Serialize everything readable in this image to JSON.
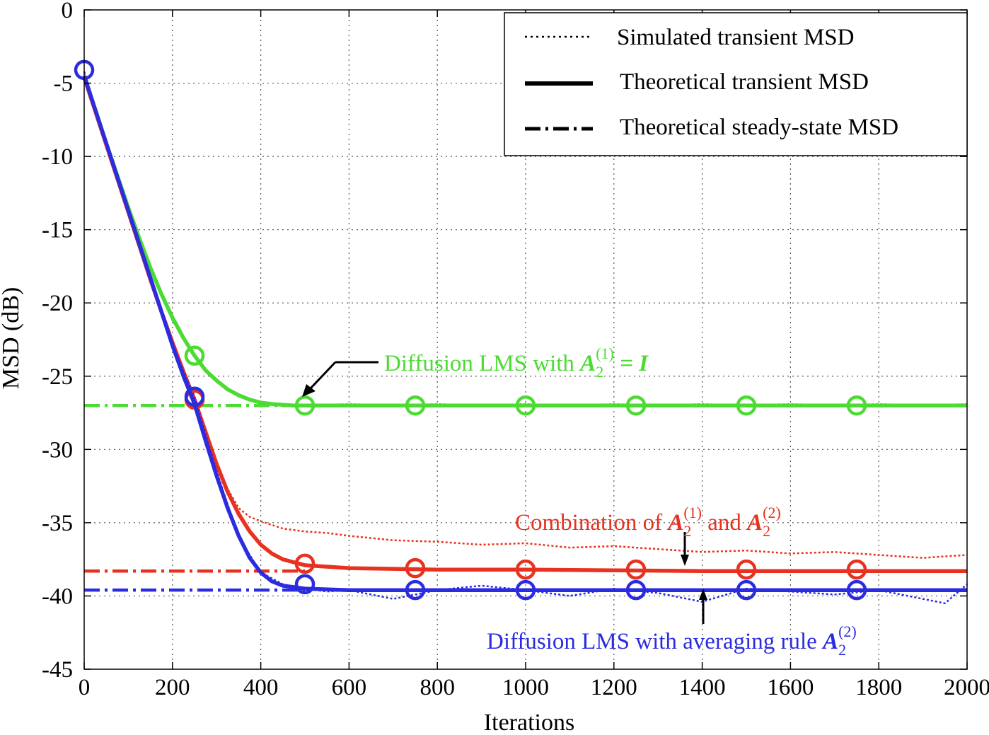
{
  "chart_data": {
    "type": "line",
    "xlabel": "Iterations",
    "ylabel": "MSD (dB)",
    "xlim": [
      0,
      2000
    ],
    "ylim": [
      -45,
      0
    ],
    "xticks": [
      0,
      200,
      400,
      600,
      800,
      1000,
      1200,
      1400,
      1600,
      1800,
      2000
    ],
    "yticks": [
      0,
      -5,
      -10,
      -15,
      -20,
      -25,
      -30,
      -35,
      -40,
      -45
    ],
    "grid": true,
    "legend_position": "top-right",
    "legend": [
      {
        "label": "Simulated transient MSD",
        "style": "dotted"
      },
      {
        "label": "Theoretical transient MSD",
        "style": "solid"
      },
      {
        "label": "Theoretical steady-state MSD",
        "style": "dash-dot"
      }
    ],
    "series": [
      {
        "color": "#4cdb33",
        "annotation": {
          "prefix": "Diffusion LMS with ",
          "math": "A",
          "sub": "2",
          "sup": "(1)",
          "suffix": " = I"
        },
        "steady_state": -27.0,
        "theoretical": {
          "x": [
            0,
            25,
            50,
            75,
            100,
            125,
            150,
            175,
            200,
            225,
            250,
            275,
            300,
            325,
            350,
            375,
            400,
            425,
            450,
            475,
            500,
            550,
            600,
            700,
            800,
            900,
            1000,
            1200,
            1400,
            1600,
            1800,
            2000
          ],
          "y": [
            -4.6,
            -6.8,
            -9.1,
            -11.3,
            -13.5,
            -15.6,
            -17.6,
            -19.4,
            -21.0,
            -22.4,
            -23.6,
            -24.6,
            -25.3,
            -25.9,
            -26.3,
            -26.6,
            -26.8,
            -26.9,
            -26.95,
            -27.0,
            -27.0,
            -27.0,
            -27.0,
            -27.0,
            -27.0,
            -27.0,
            -27.0,
            -27.0,
            -27.0,
            -27.0,
            -27.0,
            -27.0
          ]
        },
        "simulated": {
          "x": [
            0,
            50,
            100,
            150,
            200,
            250,
            300,
            350,
            400,
            450,
            500,
            600,
            700,
            800,
            900,
            1000,
            1100,
            1200,
            1300,
            1400,
            1500,
            1600,
            1700,
            1800,
            1900,
            2000
          ],
          "y": [
            -4.2,
            -9.0,
            -13.7,
            -17.8,
            -21.2,
            -23.7,
            -25.4,
            -26.4,
            -26.9,
            -27.0,
            -27.0,
            -26.9,
            -27.0,
            -26.9,
            -27.0,
            -26.9,
            -27.0,
            -26.9,
            -27.0,
            -26.9,
            -27.0,
            -26.9,
            -27.0,
            -26.9,
            -27.0,
            -26.9
          ]
        },
        "markers": {
          "x": [
            250,
            500,
            750,
            1000,
            1250,
            1500,
            1750
          ],
          "y": [
            -23.6,
            -27.0,
            -27.0,
            -27.0,
            -27.0,
            -27.0,
            -27.0
          ]
        }
      },
      {
        "color": "#e8311e",
        "annotation": {
          "prefix": "Combination of ",
          "math": "A",
          "sub": "2",
          "sup": "(1)",
          "mid": " and ",
          "math2": "A",
          "sub2": "2",
          "sup2": "(2)"
        },
        "steady_state": -38.3,
        "theoretical": {
          "x": [
            0,
            25,
            50,
            75,
            100,
            125,
            150,
            175,
            200,
            225,
            250,
            275,
            300,
            325,
            350,
            375,
            400,
            425,
            450,
            500,
            600,
            700,
            800,
            1000,
            1200,
            1400,
            1600,
            1800,
            2000
          ],
          "y": [
            -4.6,
            -6.9,
            -9.2,
            -11.5,
            -13.8,
            -16.1,
            -18.4,
            -20.6,
            -22.7,
            -24.7,
            -26.6,
            -28.8,
            -31.0,
            -32.9,
            -34.4,
            -35.6,
            -36.5,
            -37.1,
            -37.5,
            -37.9,
            -38.1,
            -38.15,
            -38.2,
            -38.2,
            -38.25,
            -38.3,
            -38.3,
            -38.3,
            -38.3
          ]
        },
        "simulated": {
          "x": [
            0,
            50,
            100,
            150,
            200,
            250,
            300,
            325,
            350,
            375,
            400,
            450,
            500,
            550,
            600,
            700,
            800,
            900,
            1000,
            1100,
            1200,
            1300,
            1400,
            1500,
            1600,
            1700,
            1800,
            1900,
            2000
          ],
          "y": [
            -4.3,
            -9.2,
            -13.9,
            -18.5,
            -22.8,
            -26.6,
            -30.8,
            -32.7,
            -34.0,
            -34.6,
            -34.9,
            -35.4,
            -35.6,
            -35.7,
            -35.9,
            -36.2,
            -36.3,
            -36.5,
            -36.4,
            -36.7,
            -36.6,
            -36.8,
            -37.0,
            -36.9,
            -37.1,
            -37.0,
            -37.2,
            -37.4,
            -37.2
          ]
        },
        "markers": {
          "x": [
            250,
            500,
            750,
            1000,
            1250,
            1500,
            1750
          ],
          "y": [
            -26.6,
            -37.8,
            -38.1,
            -38.2,
            -38.2,
            -38.2,
            -38.2
          ]
        }
      },
      {
        "color": "#2b2be0",
        "annotation": {
          "prefix": "Diffusion LMS with averaging rule ",
          "math": "A",
          "sub": "2",
          "sup": "(2)"
        },
        "steady_state": -39.6,
        "theoretical": {
          "x": [
            0,
            25,
            50,
            75,
            100,
            125,
            150,
            175,
            200,
            225,
            250,
            275,
            300,
            325,
            350,
            375,
            400,
            425,
            450,
            500,
            600,
            700,
            800,
            1000,
            1200,
            1400,
            1600,
            1800,
            2000
          ],
          "y": [
            -4.5,
            -6.8,
            -9.1,
            -11.4,
            -13.7,
            -16.0,
            -18.3,
            -20.6,
            -22.9,
            -25.0,
            -26.9,
            -29.4,
            -31.8,
            -34.0,
            -35.9,
            -37.4,
            -38.4,
            -39.0,
            -39.3,
            -39.5,
            -39.6,
            -39.6,
            -39.6,
            -39.6,
            -39.6,
            -39.6,
            -39.6,
            -39.6,
            -39.6
          ]
        },
        "simulated": {
          "x": [
            0,
            50,
            100,
            150,
            200,
            250,
            300,
            350,
            400,
            450,
            500,
            550,
            600,
            650,
            700,
            800,
            900,
            1000,
            1100,
            1200,
            1300,
            1400,
            1500,
            1600,
            1700,
            1800,
            1900,
            1950,
            2000
          ],
          "y": [
            -4.2,
            -9.0,
            -13.8,
            -18.5,
            -22.9,
            -26.4,
            -31.5,
            -36.0,
            -38.4,
            -39.2,
            -39.5,
            -39.7,
            -39.6,
            -39.9,
            -40.2,
            -39.6,
            -39.3,
            -39.6,
            -40.0,
            -39.5,
            -39.8,
            -40.4,
            -39.5,
            -39.7,
            -39.9,
            -39.6,
            -40.2,
            -40.5,
            -39.2
          ]
        },
        "markers": {
          "x": [
            0,
            250,
            500,
            750,
            1000,
            1250,
            1500,
            1750
          ],
          "y": [
            -4.1,
            -26.4,
            -39.2,
            -39.6,
            -39.6,
            -39.6,
            -39.6,
            -39.6
          ]
        }
      }
    ]
  }
}
